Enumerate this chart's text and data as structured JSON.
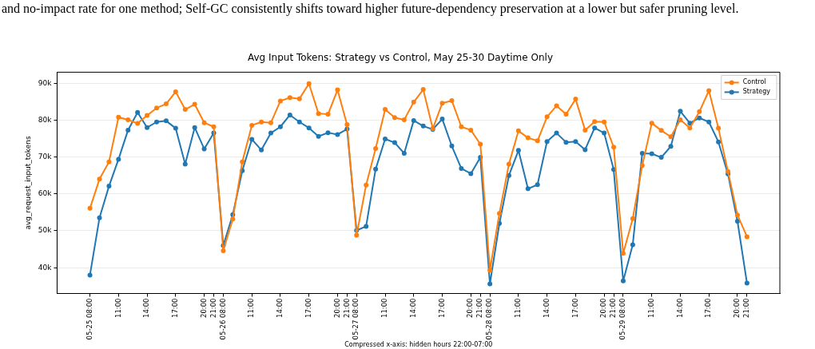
{
  "chart_data": {
    "type": "line",
    "title": "Avg Input Tokens: Strategy vs Control, May 25-30 Daytime Only",
    "xlabel": "Compressed x-axis: hidden hours 22:00-07:00",
    "ylabel": "avg_request_input_tokens",
    "annotations": [
      "and no-impact rate for one method; Self-GC consistently shifts toward higher future-dependency preservation at a lower but safer pruning level."
    ],
    "categories": [
      "05-25 08:00",
      null,
      null,
      "11:00",
      null,
      null,
      "14:00",
      null,
      null,
      "17:00",
      null,
      null,
      "20:00",
      "21:00",
      "05-26 08:00",
      null,
      null,
      "11:00",
      null,
      null,
      "14:00",
      null,
      null,
      "17:00",
      null,
      null,
      "20:00",
      "21:00",
      "05-27 08:00",
      null,
      null,
      "11:00",
      null,
      null,
      "14:00",
      null,
      null,
      "17:00",
      null,
      null,
      "20:00",
      "21:00",
      "05-28 08:00",
      null,
      null,
      "11:00",
      null,
      null,
      "14:00",
      null,
      null,
      "17:00",
      null,
      null,
      "20:00",
      "21:00",
      "05-29 08:00",
      null,
      null,
      "11:00",
      null,
      null,
      "14:00",
      null,
      null,
      "17:00",
      null,
      null,
      "20:00",
      "21:00"
    ],
    "series": [
      {
        "name": "Control",
        "color": "#ff7f0e",
        "values": [
          56100,
          64000,
          68700,
          80800,
          80100,
          79100,
          81300,
          83300,
          84400,
          87700,
          82900,
          84300,
          79300,
          78200,
          44600,
          53200,
          68700,
          78600,
          79500,
          79300,
          85200,
          86100,
          85800,
          89900,
          81800,
          81600,
          88200,
          78800,
          48800,
          62400,
          72300,
          82900,
          80700,
          80100,
          84900,
          88300,
          77700,
          84600,
          85300,
          78200,
          77300,
          73500,
          39300,
          54700,
          68100,
          77100,
          75200,
          74400,
          80900,
          83900,
          81600,
          85700,
          77300,
          79600,
          79500,
          72700,
          43900,
          53300,
          67700,
          79200,
          77200,
          75500,
          80100,
          77900,
          82300,
          88000,
          77800,
          66100,
          54300,
          48400
        ]
      },
      {
        "name": "Strategy",
        "color": "#1f77b4",
        "values": [
          38000,
          53500,
          62100,
          69400,
          77300,
          82100,
          78000,
          79500,
          79800,
          77800,
          68100,
          78000,
          72200,
          76500,
          46000,
          54400,
          66300,
          74800,
          71900,
          76500,
          78200,
          81400,
          79500,
          77900,
          75600,
          76600,
          76100,
          77600,
          50100,
          51200,
          66700,
          74900,
          73900,
          71000,
          79900,
          78400,
          77500,
          80300,
          73000,
          66900,
          65500,
          69900,
          35600,
          52000,
          65000,
          71800,
          61400,
          62500,
          74200,
          76500,
          74000,
          74200,
          72000,
          77900,
          76500,
          66600,
          36400,
          46200,
          71000,
          70900,
          69900,
          72900,
          82400,
          79200,
          80600,
          79500,
          74100,
          65400,
          52600,
          35800
        ]
      }
    ],
    "ylim": [
      33000,
      93000
    ],
    "yticks": [
      {
        "value": 40000,
        "label": "40k"
      },
      {
        "value": 50000,
        "label": "50k"
      },
      {
        "value": 60000,
        "label": "60k"
      },
      {
        "value": 70000,
        "label": "70k"
      },
      {
        "value": 80000,
        "label": "80k"
      },
      {
        "value": 90000,
        "label": "90k"
      }
    ],
    "grid": "y",
    "legend": "top right",
    "marker": "circle",
    "line_style": "solid"
  }
}
